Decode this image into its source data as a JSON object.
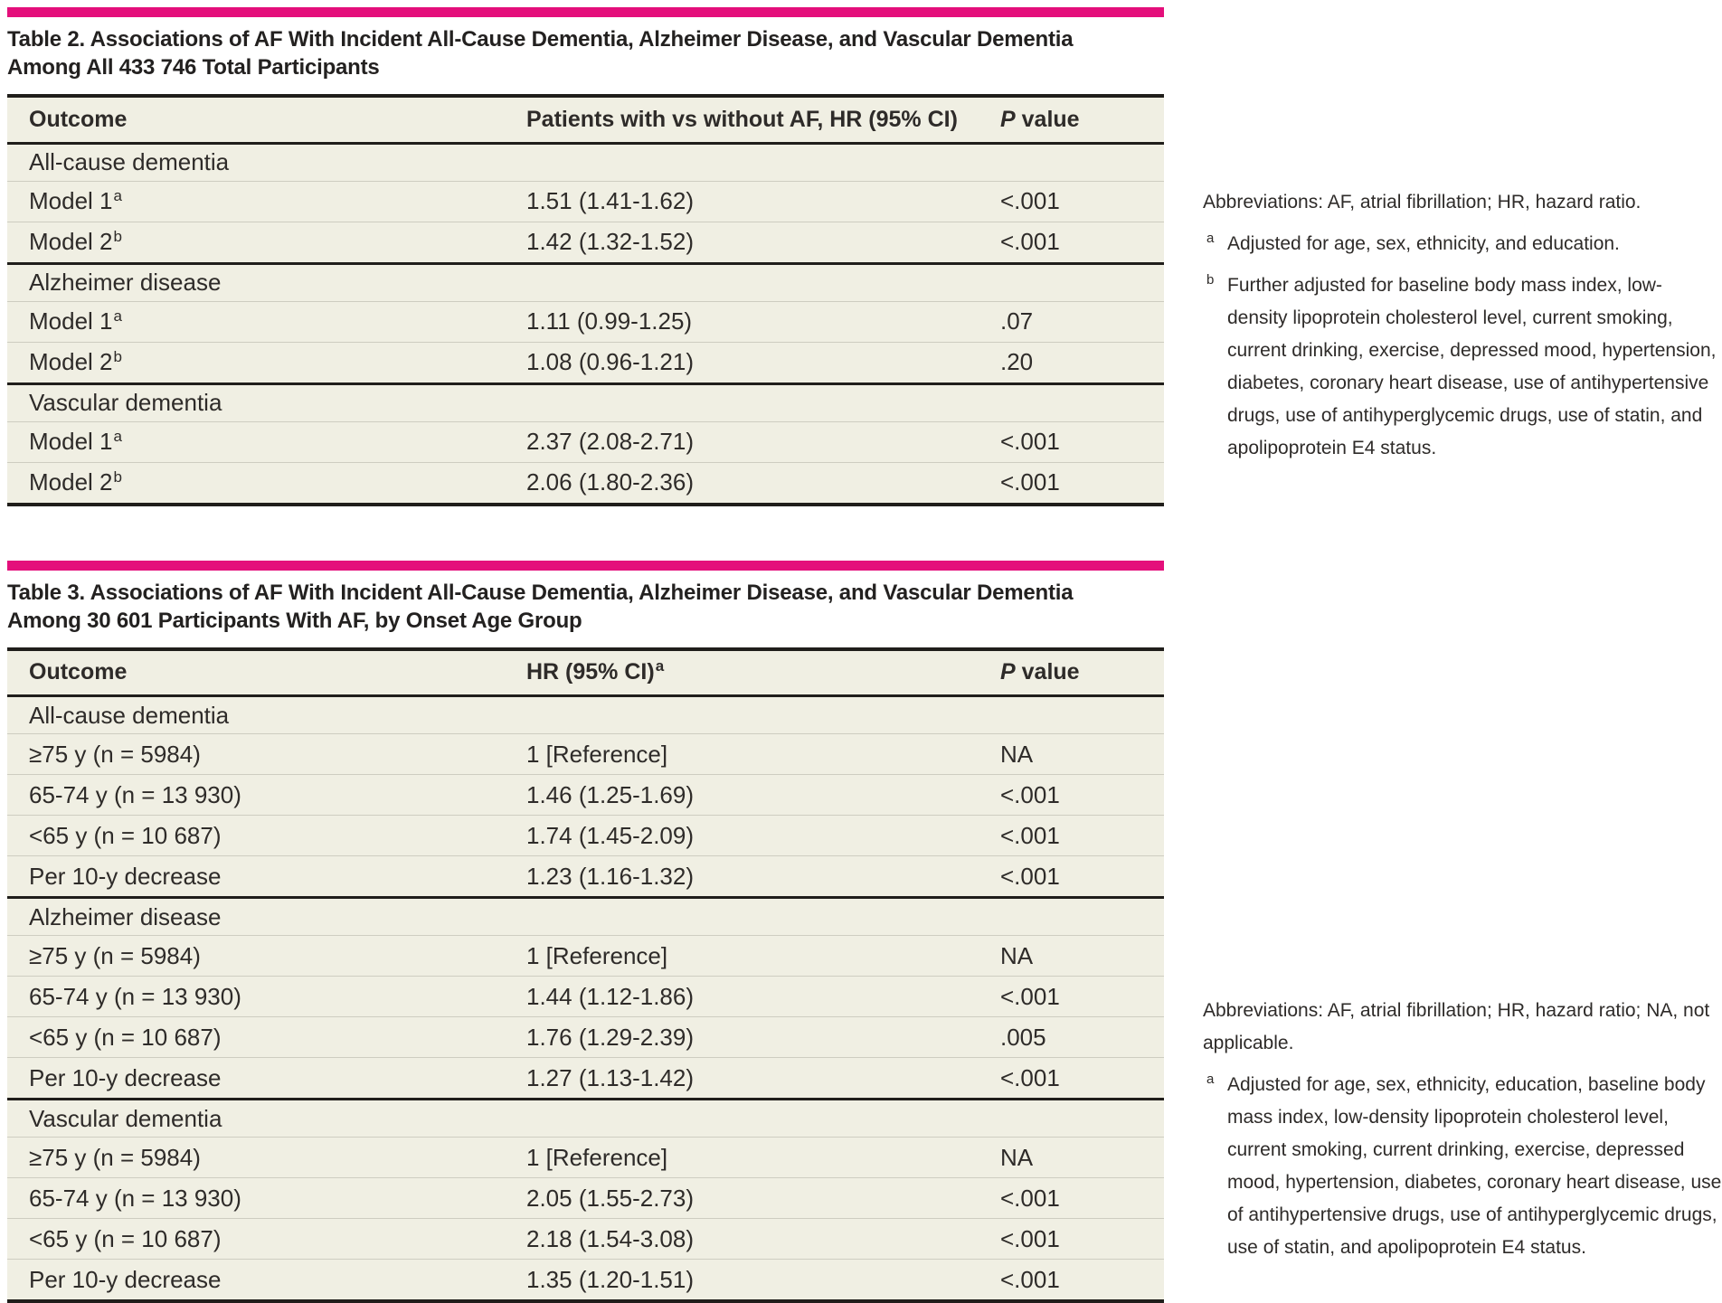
{
  "colors": {
    "accent_pink": "#e40f7b",
    "table_background": "#f0efe3",
    "rule_dark": "#201e1b",
    "rule_light": "#cecdc1",
    "text": "#2e2b29"
  },
  "table2": {
    "title_line1": "Table 2. Associations of AF With Incident All-Cause Dementia, Alzheimer Disease, and Vascular Dementia",
    "title_line2": "Among All 433 746 Total Participants",
    "columns": {
      "outcome": "Outcome",
      "hr": "Patients with vs without AF, HR (95% CI)",
      "p_italic": "P",
      "p_rest": "value"
    },
    "sections": [
      {
        "header": "All-cause dementia",
        "rows": [
          {
            "label": "Model 1",
            "sup": "a",
            "hr": "1.51 (1.41-1.62)",
            "p": "<.001"
          },
          {
            "label": "Model 2",
            "sup": "b",
            "hr": "1.42 (1.32-1.52)",
            "p": "<.001"
          }
        ]
      },
      {
        "header": "Alzheimer disease",
        "rows": [
          {
            "label": "Model 1",
            "sup": "a",
            "hr": "1.11 (0.99-1.25)",
            "p": ".07"
          },
          {
            "label": "Model 2",
            "sup": "b",
            "hr": "1.08 (0.96-1.21)",
            "p": ".20"
          }
        ]
      },
      {
        "header": "Vascular dementia",
        "rows": [
          {
            "label": "Model 1",
            "sup": "a",
            "hr": "2.37 (2.08-2.71)",
            "p": "<.001"
          },
          {
            "label": "Model 2",
            "sup": "b",
            "hr": "2.06 (1.80-2.36)",
            "p": "<.001"
          }
        ]
      }
    ],
    "footnotes": {
      "abbreviations": "Abbreviations: AF, atrial fibrillation; HR, hazard ratio.",
      "a_marker": "a",
      "a": "Adjusted for age, sex, ethnicity, and education.",
      "b_marker": "b",
      "b": "Further adjusted for baseline body mass index, low-density lipoprotein cholesterol level, current smoking, current drinking, exercise, depressed mood, hypertension, diabetes, coronary heart disease, use of antihypertensive drugs, use of antihyperglycemic drugs, use of statin, and apolipoprotein E4 status."
    }
  },
  "table3": {
    "title_line1": "Table 3. Associations of AF With Incident All-Cause Dementia, Alzheimer Disease, and Vascular Dementia",
    "title_line2": "Among 30 601 Participants With AF, by Onset Age Group",
    "columns": {
      "outcome": "Outcome",
      "hr": "HR (95% CI)",
      "hr_sup": "a",
      "p_italic": "P",
      "p_rest": "value"
    },
    "sections": [
      {
        "header": "All-cause dementia",
        "rows": [
          {
            "label": "≥75 y (n = 5984)",
            "hr": "1 [Reference]",
            "p": "NA"
          },
          {
            "label": "65-74 y (n = 13 930)",
            "hr": "1.46 (1.25-1.69)",
            "p": "<.001"
          },
          {
            "label": "<65 y (n = 10 687)",
            "hr": "1.74 (1.45-2.09)",
            "p": "<.001"
          },
          {
            "label": "Per 10-y decrease",
            "hr": "1.23 (1.16-1.32)",
            "p": "<.001"
          }
        ]
      },
      {
        "header": "Alzheimer disease",
        "rows": [
          {
            "label": "≥75 y (n = 5984)",
            "hr": "1 [Reference]",
            "p": "NA"
          },
          {
            "label": "65-74 y (n = 13 930)",
            "hr": "1.44 (1.12-1.86)",
            "p": "<.001"
          },
          {
            "label": "<65 y (n = 10 687)",
            "hr": "1.76 (1.29-2.39)",
            "p": ".005"
          },
          {
            "label": "Per 10-y decrease",
            "hr": "1.27 (1.13-1.42)",
            "p": "<.001"
          }
        ]
      },
      {
        "header": "Vascular dementia",
        "rows": [
          {
            "label": "≥75 y (n = 5984)",
            "hr": "1 [Reference]",
            "p": "NA"
          },
          {
            "label": "65-74 y (n = 13 930)",
            "hr": "2.05 (1.55-2.73)",
            "p": "<.001"
          },
          {
            "label": "<65 y (n = 10 687)",
            "hr": "2.18 (1.54-3.08)",
            "p": "<.001"
          },
          {
            "label": "Per 10-y decrease",
            "hr": "1.35 (1.20-1.51)",
            "p": "<.001"
          }
        ]
      }
    ],
    "footnotes": {
      "abbreviations": "Abbreviations: AF, atrial fibrillation; HR, hazard ratio; NA, not applicable.",
      "a_marker": "a",
      "a": "Adjusted for age, sex, ethnicity, education, baseline body mass index, low-density lipoprotein cholesterol level, current smoking, current drinking, exercise, depressed mood, hypertension, diabetes, coronary heart disease, use of antihypertensive drugs, use of antihyperglycemic drugs, use of statin, and apolipoprotein E4 status."
    }
  }
}
